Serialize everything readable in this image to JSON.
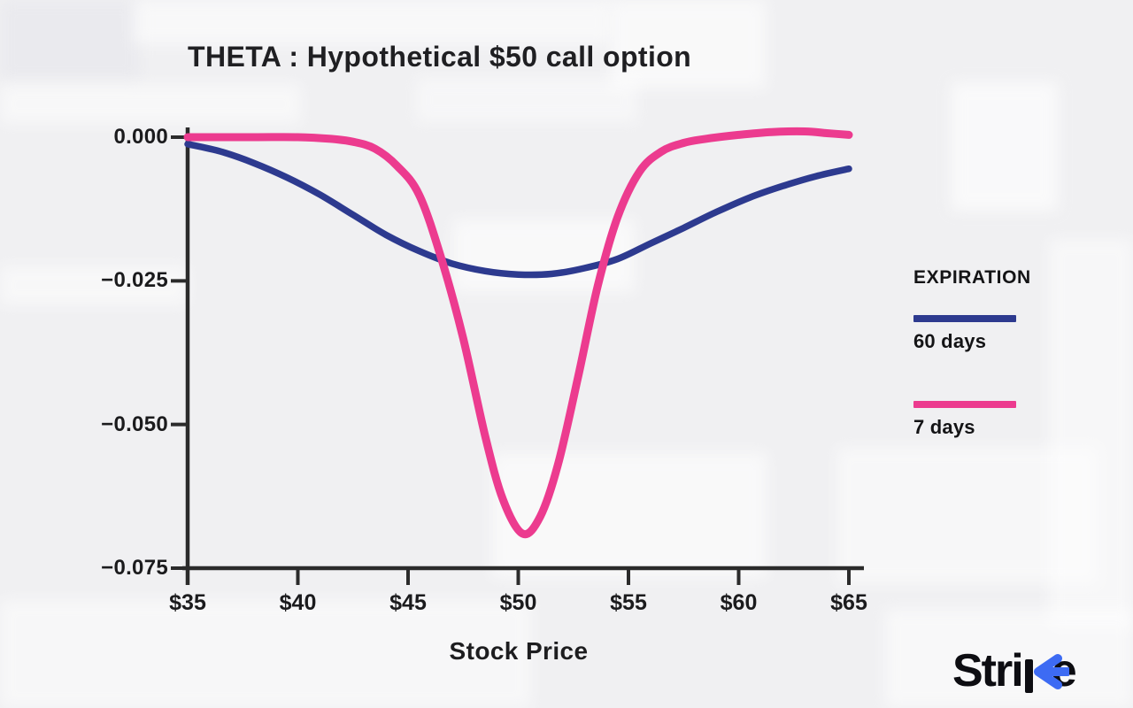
{
  "colors": {
    "background": "#f0f0f2",
    "axis": "#2b2b2b",
    "text": "#1b1b1d",
    "series_blue": "#2d3a8f",
    "series_pink": "#ec3b8f",
    "logo_black": "#0d0d12",
    "logo_arrow": "#3d6bf3"
  },
  "chart_data": {
    "type": "line",
    "title": "THETA : Hypothetical $50 call option",
    "xlabel": "Stock Price",
    "ylabel": "",
    "xlim": [
      35,
      65
    ],
    "ylim": [
      -0.075,
      0
    ],
    "grid": false,
    "x_ticks": [
      "$35",
      "$40",
      "$45",
      "$50",
      "$55",
      "$60",
      "$65"
    ],
    "x_tick_values": [
      35,
      40,
      45,
      50,
      55,
      60,
      65
    ],
    "y_ticks": [
      "0.000",
      "−0.025",
      "−0.050",
      "−0.075"
    ],
    "y_tick_values": [
      0,
      -0.025,
      -0.05,
      -0.075
    ],
    "legend_title": "EXPIRATION",
    "legend_position": "right",
    "series": [
      {
        "name": "60 days",
        "color": "#2d3a8f",
        "points": [
          [
            35,
            -0.0012
          ],
          [
            36.5,
            -0.0025
          ],
          [
            38,
            -0.0045
          ],
          [
            39.5,
            -0.007
          ],
          [
            41,
            -0.01
          ],
          [
            42.5,
            -0.0135
          ],
          [
            44,
            -0.017
          ],
          [
            45.5,
            -0.0198
          ],
          [
            47,
            -0.022
          ],
          [
            48.5,
            -0.0233
          ],
          [
            50,
            -0.0239
          ],
          [
            51.5,
            -0.0238
          ],
          [
            53,
            -0.0228
          ],
          [
            54.5,
            -0.0212
          ],
          [
            56,
            -0.0185
          ],
          [
            57.5,
            -0.0158
          ],
          [
            59,
            -0.013
          ],
          [
            60.5,
            -0.0105
          ],
          [
            62,
            -0.0085
          ],
          [
            63.5,
            -0.0068
          ],
          [
            65,
            -0.0055
          ]
        ]
      },
      {
        "name": "7 days",
        "color": "#ec3b8f",
        "points": [
          [
            35,
            0
          ],
          [
            38,
            0
          ],
          [
            40,
            0
          ],
          [
            41.5,
            -0.0003
          ],
          [
            42.5,
            -0.0008
          ],
          [
            43.5,
            -0.002
          ],
          [
            44.5,
            -0.005
          ],
          [
            45.5,
            -0.01
          ],
          [
            46.5,
            -0.021
          ],
          [
            47.5,
            -0.035
          ],
          [
            48.5,
            -0.052
          ],
          [
            49.3,
            -0.063
          ],
          [
            50.2,
            -0.069
          ],
          [
            51,
            -0.066
          ],
          [
            51.8,
            -0.057
          ],
          [
            52.7,
            -0.042
          ],
          [
            53.6,
            -0.026
          ],
          [
            54.5,
            -0.014
          ],
          [
            55.5,
            -0.006
          ],
          [
            56.5,
            -0.0025
          ],
          [
            57.5,
            -0.001
          ],
          [
            58.5,
            -0.0003
          ],
          [
            60,
            0.0004
          ],
          [
            61.5,
            0.0009
          ],
          [
            63,
            0.001
          ],
          [
            64,
            0.0007
          ],
          [
            65,
            0.0004
          ]
        ]
      }
    ]
  },
  "legend": {
    "title": "EXPIRATION",
    "items": [
      {
        "label": "60 days",
        "color": "#2d3a8f"
      },
      {
        "label": "7 days",
        "color": "#ec3b8f"
      }
    ]
  },
  "logo": {
    "text_prefix": "Stri",
    "text_suffix": "e",
    "full_name": "Strike",
    "arrow_color": "#3d6bf3"
  }
}
